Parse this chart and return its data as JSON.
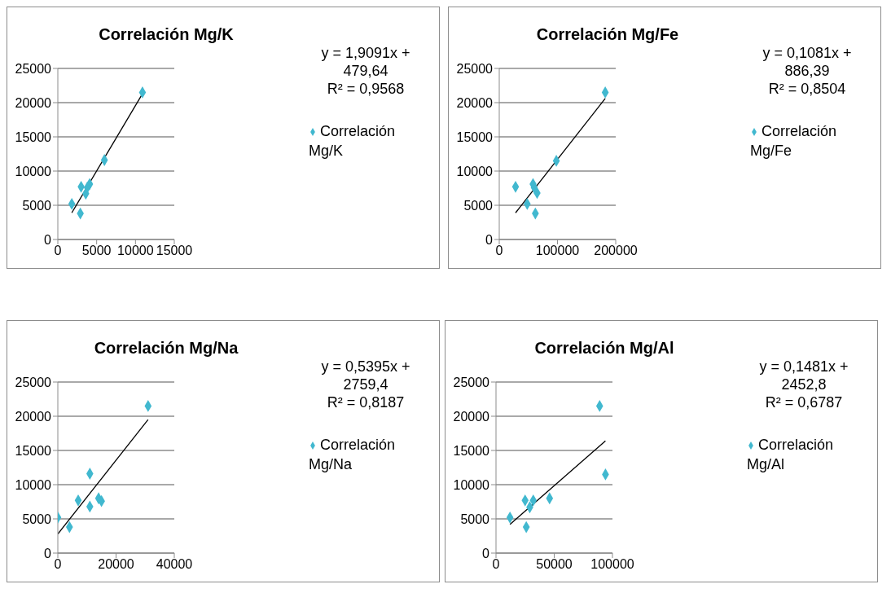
{
  "chart_data": [
    {
      "type": "scatter",
      "title": "Correlación Mg/K",
      "xlim": [
        0,
        15000
      ],
      "xticks": [
        0,
        5000,
        10000,
        15000
      ],
      "ylim": [
        0,
        25000
      ],
      "yticks": [
        0,
        5000,
        10000,
        15000,
        20000,
        25000
      ],
      "grid": "y",
      "legend": "right",
      "marker": "diamond",
      "annotations": [
        "y = 1,9091x + 479,64",
        "R² = 0,9568"
      ],
      "series": [
        {
          "name": "Correlación Mg/K",
          "color": "#41b8cf",
          "x": [
            10900,
            6000,
            4100,
            3000,
            3600,
            1800,
            2900,
            3800
          ],
          "values": [
            21500,
            11600,
            8100,
            7700,
            6700,
            5200,
            3800,
            7600
          ]
        },
        {
          "type": "line",
          "color": "#000000",
          "marker": "none",
          "x": [
            1800,
            10900
          ],
          "values": [
            3900,
            21300
          ]
        }
      ]
    },
    {
      "type": "scatter",
      "title": "Correlación Mg/Fe",
      "xlim": [
        0,
        200000
      ],
      "xticks": [
        0,
        100000,
        200000
      ],
      "ylim": [
        0,
        25000
      ],
      "yticks": [
        0,
        5000,
        10000,
        15000,
        20000,
        25000
      ],
      "grid": "y",
      "legend": "right",
      "marker": "diamond",
      "annotations": [
        "y = 0,1081x + 886,39",
        "R² = 0,8504"
      ],
      "series": [
        {
          "name": "Correlación Mg/Fe",
          "color": "#41b8cf",
          "x": [
            182000,
            98000,
            58000,
            28000,
            65000,
            48000,
            62000,
            60000
          ],
          "values": [
            21500,
            11500,
            8100,
            7700,
            6800,
            5200,
            3800,
            7600
          ]
        },
        {
          "type": "line",
          "color": "#000000",
          "marker": "none",
          "x": [
            28000,
            182000
          ],
          "values": [
            3900,
            20600
          ]
        }
      ]
    },
    {
      "type": "scatter",
      "title": "Correlación Mg/Na",
      "xlim": [
        0,
        40000
      ],
      "xticks": [
        0,
        20000,
        40000
      ],
      "ylim": [
        0,
        25000
      ],
      "yticks": [
        0,
        5000,
        10000,
        15000,
        20000,
        25000
      ],
      "grid": "y",
      "legend": "right",
      "marker": "diamond",
      "annotations": [
        "y = 0,5395x + 2759,4",
        "R² = 0,8187"
      ],
      "series": [
        {
          "name": "Correlación Mg/Na",
          "color": "#41b8cf",
          "x": [
            31000,
            11000,
            14000,
            7000,
            15000,
            11000,
            0,
            4000
          ],
          "values": [
            21500,
            11600,
            8000,
            7700,
            7600,
            6800,
            5200,
            3800
          ]
        },
        {
          "type": "line",
          "color": "#000000",
          "marker": "none",
          "x": [
            0,
            31000
          ],
          "values": [
            2800,
            19500
          ]
        }
      ]
    },
    {
      "type": "scatter",
      "title": "Correlación Mg/Al",
      "xlim": [
        0,
        100000
      ],
      "xticks": [
        0,
        50000,
        100000
      ],
      "ylim": [
        0,
        25000
      ],
      "yticks": [
        0,
        5000,
        10000,
        15000,
        20000,
        25000
      ],
      "grid": "y",
      "legend": "right",
      "marker": "diamond",
      "annotations": [
        "y = 0,1481x + 2452,8",
        "R² = 0,6787"
      ],
      "series": [
        {
          "name": "Correlación Mg/Al",
          "color": "#41b8cf",
          "x": [
            89000,
            94000,
            46000,
            25000,
            32000,
            29000,
            12000,
            26000
          ],
          "values": [
            21500,
            11500,
            8000,
            7700,
            7700,
            6700,
            5200,
            3800
          ]
        },
        {
          "type": "line",
          "color": "#000000",
          "marker": "none",
          "x": [
            12000,
            94000
          ],
          "values": [
            4200,
            16400
          ]
        }
      ]
    }
  ]
}
